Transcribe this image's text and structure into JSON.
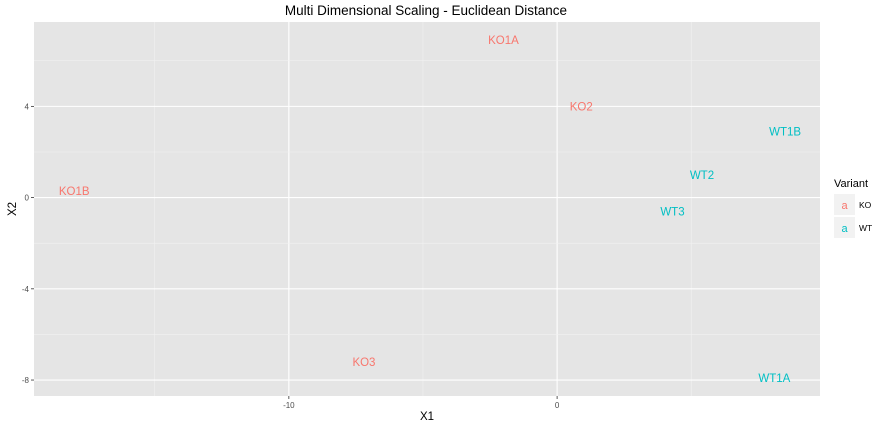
{
  "colors": {
    "panel_background": "#E5E5E5",
    "grid_major": "#FFFFFF",
    "grid_minor": "#F2F2F2",
    "KO": "#F8766D",
    "WT": "#00BFC4"
  },
  "chart_data": {
    "type": "scatter",
    "title": "Multi Dimensional Scaling - Euclidean Distance",
    "xlabel": "X1",
    "ylabel": "X2",
    "xlim": [
      -19.5,
      9.8
    ],
    "ylim": [
      -8.7,
      7.7
    ],
    "xticks": [
      -10,
      0
    ],
    "yticks": [
      4,
      0,
      -4,
      -8
    ],
    "grid": true,
    "legend_position": "right",
    "legend": {
      "title": "Variant",
      "key_glyph": "a",
      "items": [
        {
          "label": "KO",
          "color": "#F8766D"
        },
        {
          "label": "WT",
          "color": "#00BFC4"
        }
      ]
    },
    "points": [
      {
        "label": "KO1A",
        "x": -2.0,
        "y": 6.9,
        "group": "KO"
      },
      {
        "label": "KO2",
        "x": 0.9,
        "y": 4.0,
        "group": "KO"
      },
      {
        "label": "WT1B",
        "x": 8.5,
        "y": 2.9,
        "group": "WT"
      },
      {
        "label": "KO1B",
        "x": -18.0,
        "y": 0.3,
        "group": "KO"
      },
      {
        "label": "WT2",
        "x": 5.4,
        "y": 1.0,
        "group": "WT"
      },
      {
        "label": "WT3",
        "x": 4.3,
        "y": -0.6,
        "group": "WT"
      },
      {
        "label": "KO3",
        "x": -7.2,
        "y": -7.2,
        "group": "KO"
      },
      {
        "label": "WT1A",
        "x": 8.1,
        "y": -7.9,
        "group": "WT"
      }
    ]
  }
}
